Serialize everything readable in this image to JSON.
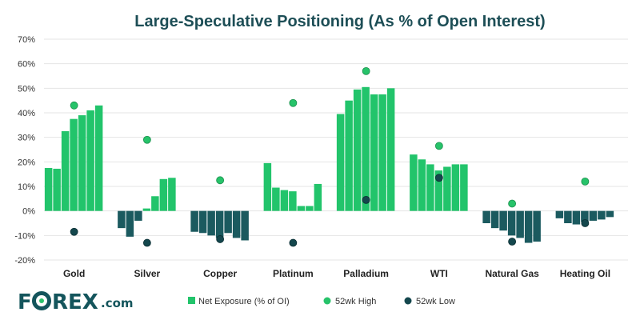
{
  "chart_data": {
    "type": "bar",
    "title": "Large-Speculative Positioning (As % of Open Interest)",
    "xlabel": "",
    "ylabel": "",
    "ylim": [
      -20,
      70
    ],
    "y_ticks": [
      "70%",
      "60%",
      "50%",
      "40%",
      "30%",
      "20%",
      "10%",
      "0%",
      "-10%",
      "-20%"
    ],
    "grid": true,
    "legend_position": "bottom",
    "categories": [
      "Gold",
      "Silver",
      "Copper",
      "Platinum",
      "Palladium",
      "WTI",
      "Natural Gas",
      "Heating Oil"
    ],
    "series": [
      {
        "name": "Net Exposure (% of OI)",
        "type": "bar-group",
        "values": [
          [
            17.5,
            17.2,
            32.5,
            37.5,
            39,
            41,
            43
          ],
          [
            -7,
            -10.5,
            -4,
            1,
            6,
            13,
            13.5
          ],
          [
            -8.5,
            -9,
            -10,
            -11,
            -9,
            -11,
            -12
          ],
          [
            19.5,
            9.5,
            8.5,
            8,
            2,
            2,
            11
          ],
          [
            39.5,
            45,
            49.5,
            50.5,
            47.5,
            47.5,
            50
          ],
          [
            23,
            21,
            19,
            16.5,
            18,
            19,
            19
          ],
          [
            -5,
            -7,
            -8,
            -10,
            -11,
            -13,
            -12.5
          ],
          [
            -3,
            -5,
            -5.5,
            -4.5,
            -4,
            -3.5,
            -2.5
          ]
        ]
      },
      {
        "name": "52wk High",
        "type": "scatter",
        "values": [
          43,
          29,
          12.5,
          44,
          57,
          26.5,
          3,
          12
        ]
      },
      {
        "name": "52wk Low",
        "type": "scatter",
        "values": [
          -8.5,
          -13,
          -11.5,
          -13,
          4.5,
          13.5,
          -12.5,
          -5
        ]
      }
    ]
  },
  "colors": {
    "bar": "#22c46b",
    "bar_negative": "#1b5a5f",
    "high_marker": "#27c36a",
    "low_marker": "#14474d",
    "title": "#1d4e56",
    "grid": "#e4e4e4",
    "logo": "#14555c",
    "logo_accent": "#2cc36b"
  },
  "logo": {
    "prefix": "F",
    "suffix": "REX",
    "domain": ".com"
  }
}
